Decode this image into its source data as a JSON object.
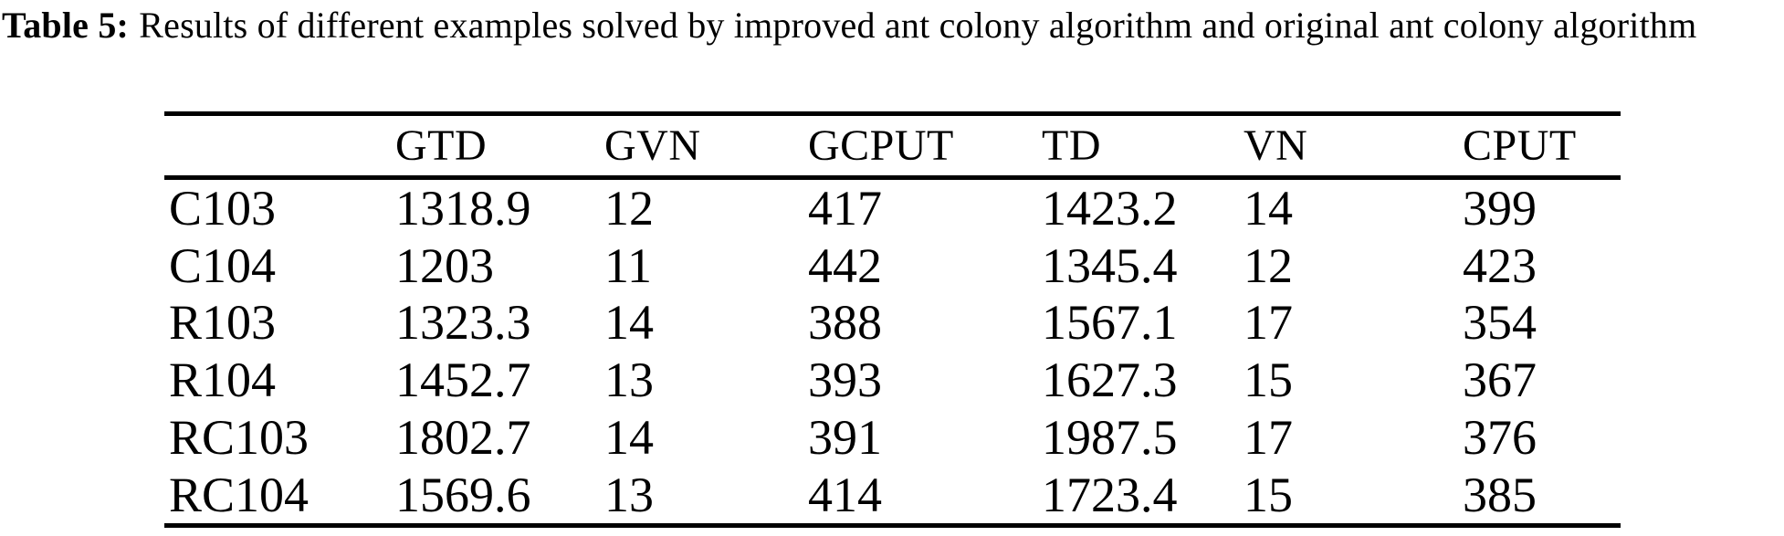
{
  "caption": {
    "label": "Table 5:",
    "text": "Results of different examples solved by improved ant colony algorithm and original ant colony algorithm"
  },
  "table": {
    "columns": [
      "",
      "GTD",
      "GVN",
      "GCPUT",
      "TD",
      "VN",
      "CPUT"
    ],
    "rows": [
      {
        "label": "C103",
        "values": [
          "1318.9",
          "12",
          "417",
          "1423.2",
          "14",
          "399"
        ]
      },
      {
        "label": "C104",
        "values": [
          "1203",
          "11",
          "442",
          "1345.4",
          "12",
          "423"
        ]
      },
      {
        "label": "R103",
        "values": [
          "1323.3",
          "14",
          "388",
          "1567.1",
          "17",
          "354"
        ]
      },
      {
        "label": "R104",
        "values": [
          "1452.7",
          "13",
          "393",
          "1627.3",
          "15",
          "367"
        ]
      },
      {
        "label": "RC103",
        "values": [
          "1802.7",
          "14",
          "391",
          "1987.5",
          "17",
          "376"
        ]
      },
      {
        "label": "RC104",
        "values": [
          "1569.6",
          "13",
          "414",
          "1723.4",
          "15",
          "385"
        ]
      }
    ]
  },
  "colors": {
    "text": "#000000",
    "background": "#ffffff",
    "rule": "#000000"
  }
}
